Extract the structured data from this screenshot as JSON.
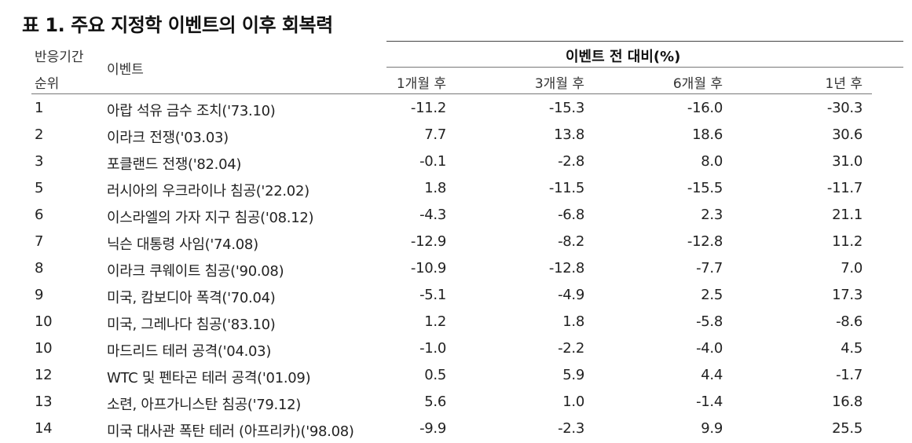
{
  "title": "표 1. 주요 지정학 이벤트의 이후 회복력",
  "header": {
    "rank_label_line1": "반응기간",
    "rank_label_line2": "순위",
    "event_label": "이벤트",
    "group_label": "이벤트 전 대비(%)",
    "col_1m": "1개월 후",
    "col_3m": "3개월 후",
    "col_6m": "6개월 후",
    "col_1y": "1년 후"
  },
  "rows": [
    {
      "rank": "1",
      "event": "아랍 석유 금수 조치('73.10)",
      "m1": "-11.2",
      "m3": "-15.3",
      "m6": "-16.0",
      "y1": "-30.3"
    },
    {
      "rank": "2",
      "event": "이라크 전쟁('03.03)",
      "m1": "7.7",
      "m3": "13.8",
      "m6": "18.6",
      "y1": "30.6"
    },
    {
      "rank": "3",
      "event": "포클랜드 전쟁('82.04)",
      "m1": "-0.1",
      "m3": "-2.8",
      "m6": "8.0",
      "y1": "31.0"
    },
    {
      "rank": "5",
      "event": "러시아의 우크라이나 침공('22.02)",
      "m1": "1.8",
      "m3": "-11.5",
      "m6": "-15.5",
      "y1": "-11.7"
    },
    {
      "rank": "6",
      "event": "이스라엘의 가자 지구 침공('08.12)",
      "m1": "-4.3",
      "m3": "-6.8",
      "m6": "2.3",
      "y1": "21.1"
    },
    {
      "rank": "7",
      "event": "닉슨 대통령 사임('74.08)",
      "m1": "-12.9",
      "m3": "-8.2",
      "m6": "-12.8",
      "y1": "11.2"
    },
    {
      "rank": "8",
      "event": "이라크 쿠웨이트 침공('90.08)",
      "m1": "-10.9",
      "m3": "-12.8",
      "m6": "-7.7",
      "y1": "7.0"
    },
    {
      "rank": "9",
      "event": "미국, 캄보디아 폭격('70.04)",
      "m1": "-5.1",
      "m3": "-4.9",
      "m6": "2.5",
      "y1": "17.3"
    },
    {
      "rank": "10",
      "event": "미국, 그레나다 침공('83.10)",
      "m1": "1.2",
      "m3": "1.8",
      "m6": "-5.8",
      "y1": "-8.6"
    },
    {
      "rank": "10",
      "event": "마드리드 테러 공격('04.03)",
      "m1": "-1.0",
      "m3": "-2.2",
      "m6": "-4.0",
      "y1": "4.5"
    },
    {
      "rank": "12",
      "event": "WTC 및 펜타곤 테러 공격('01.09)",
      "m1": "0.5",
      "m3": "5.9",
      "m6": "4.4",
      "y1": "-1.7"
    },
    {
      "rank": "13",
      "event": "소련, 아프가니스탄 침공('79.12)",
      "m1": "5.6",
      "m3": "1.0",
      "m6": "-1.4",
      "y1": "16.8"
    },
    {
      "rank": "14",
      "event": "미국 대사관 폭탄 테러 (아프리카)('98.08)",
      "m1": "-9.9",
      "m3": "-2.3",
      "m6": "9.9",
      "y1": "25.5"
    }
  ]
}
